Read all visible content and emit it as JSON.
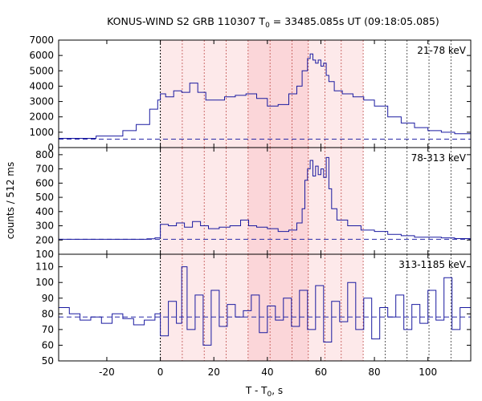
{
  "chart_data": {
    "type": "line",
    "title_main": "KONUS-WIND S2 GRB 110307 T",
    "title_sub": "0",
    "title_rest": " = 33485.085s UT (09:18:05.085)",
    "ylabel": "counts / 512 ms",
    "xlabel_main": "T - T",
    "xlabel_sub": "0",
    "xlabel_rest": ", s",
    "xlim": [
      -38,
      116
    ],
    "x_ticks": [
      -20,
      0,
      20,
      40,
      60,
      80,
      100
    ],
    "x_tick_labels": [
      "-20",
      "0",
      "20",
      "40",
      "60",
      "80",
      "100"
    ],
    "vertical_markers_s": [
      0,
      8.2,
      16.4,
      24.6,
      32.8,
      41,
      49.2,
      55.3,
      61.5,
      67.6,
      75.8,
      84,
      92.2,
      100.4,
      108.6
    ],
    "shaded_intervals_s": [
      [
        0,
        75.8
      ],
      [
        32.8,
        55.3
      ]
    ],
    "panels": [
      {
        "name": "21-78 keV",
        "ylim": [
          0,
          7000
        ],
        "y_ticks": [
          0,
          1000,
          2000,
          3000,
          4000,
          5000,
          6000,
          7000
        ],
        "y_tick_labels": [
          "0",
          "1000",
          "2000",
          "3000",
          "4000",
          "5000",
          "6000",
          "7000"
        ],
        "background_level": 550,
        "x": [
          -38,
          -24,
          -14,
          -9,
          -4,
          -1,
          0,
          2,
          5,
          8,
          11,
          14,
          17,
          20,
          24,
          28,
          32,
          36,
          40,
          44,
          48,
          51,
          53,
          55,
          56,
          57,
          58,
          59,
          60,
          61,
          62,
          63,
          65,
          68,
          72,
          76,
          80,
          85,
          90,
          95,
          100,
          105,
          110,
          116
        ],
        "values": [
          600,
          750,
          1100,
          1500,
          2500,
          3100,
          3500,
          3300,
          3700,
          3600,
          4200,
          3600,
          3100,
          3100,
          3300,
          3400,
          3500,
          3200,
          2700,
          2800,
          3500,
          4000,
          5000,
          5800,
          6100,
          5700,
          5500,
          5700,
          5300,
          5500,
          4700,
          4300,
          3700,
          3500,
          3300,
          3100,
          2700,
          2000,
          1600,
          1300,
          1100,
          1000,
          900,
          850
        ]
      },
      {
        "name": "78-313 keV",
        "ylim": [
          100,
          850
        ],
        "y_ticks": [
          100,
          200,
          300,
          400,
          500,
          600,
          700,
          800
        ],
        "y_tick_labels": [
          "100",
          "200",
          "300",
          "400",
          "500",
          "600",
          "700",
          "800"
        ],
        "background_level": 205,
        "x": [
          -38,
          -5,
          -2,
          0,
          3,
          6,
          9,
          12,
          15,
          18,
          22,
          26,
          30,
          33,
          36,
          40,
          44,
          48,
          51,
          53,
          54,
          55,
          56,
          57,
          58,
          59,
          60,
          61,
          62,
          63,
          64,
          66,
          70,
          75,
          80,
          85,
          90,
          95,
          100,
          105,
          110,
          116
        ],
        "values": [
          205,
          208,
          215,
          310,
          300,
          320,
          290,
          330,
          300,
          280,
          290,
          300,
          340,
          300,
          290,
          280,
          260,
          270,
          320,
          420,
          620,
          700,
          760,
          650,
          720,
          660,
          700,
          640,
          780,
          560,
          420,
          340,
          300,
          270,
          260,
          240,
          230,
          220,
          220,
          215,
          210,
          205
        ]
      },
      {
        "name": "313-1185 keV",
        "ylim": [
          50,
          118
        ],
        "y_ticks": [
          50,
          60,
          70,
          80,
          90,
          100,
          110
        ],
        "y_tick_labels": [
          "50",
          "60",
          "70",
          "80",
          "90",
          "100",
          "110"
        ],
        "background_level": 78,
        "x": [
          -38,
          -34,
          -30,
          -26,
          -22,
          -18,
          -14,
          -10,
          -6,
          -2,
          0,
          3,
          6,
          8,
          10,
          13,
          16,
          19,
          22,
          25,
          28,
          31,
          34,
          37,
          40,
          43,
          46,
          49,
          52,
          55,
          58,
          61,
          64,
          67,
          70,
          73,
          76,
          79,
          82,
          85,
          88,
          91,
          94,
          97,
          100,
          103,
          106,
          109,
          112,
          116
        ],
        "values": [
          84,
          80,
          76,
          78,
          74,
          80,
          77,
          73,
          76,
          80,
          66,
          88,
          74,
          110,
          70,
          92,
          60,
          95,
          72,
          86,
          78,
          82,
          92,
          68,
          85,
          76,
          90,
          72,
          95,
          70,
          98,
          62,
          88,
          75,
          100,
          70,
          90,
          64,
          84,
          78,
          92,
          70,
          86,
          74,
          95,
          76,
          103,
          70,
          84,
          78
        ]
      }
    ]
  }
}
